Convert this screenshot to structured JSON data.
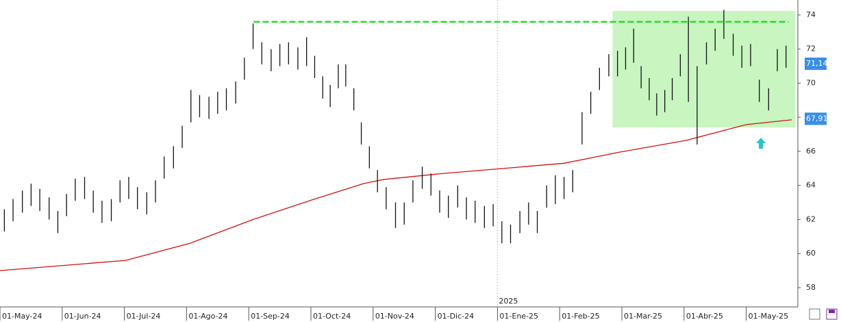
{
  "chart_data": {
    "type": "ohlc",
    "x": [
      0.07,
      0.21,
      0.36,
      0.5,
      0.64,
      0.79,
      0.93,
      1.07,
      1.21,
      1.36,
      1.5,
      1.64,
      1.79,
      1.93,
      2.07,
      2.21,
      2.36,
      2.5,
      2.64,
      2.79,
      2.93,
      3.07,
      3.21,
      3.36,
      3.5,
      3.64,
      3.79,
      3.93,
      4.07,
      4.21,
      4.36,
      4.5,
      4.64,
      4.79,
      4.93,
      5.06,
      5.19,
      5.31,
      5.44,
      5.56,
      5.69,
      5.81,
      5.94,
      6.07,
      6.21,
      6.36,
      6.5,
      6.64,
      6.79,
      6.93,
      7.07,
      7.21,
      7.36,
      7.5,
      7.64,
      7.79,
      7.93,
      8.07,
      8.21,
      8.36,
      8.5,
      8.64,
      8.79,
      8.93,
      9.07,
      9.21,
      9.36,
      9.5,
      9.64,
      9.79,
      9.93,
      10.06,
      10.19,
      10.31,
      10.44,
      10.56,
      10.69,
      10.81,
      10.94,
      11.07,
      11.21,
      11.36,
      11.5,
      11.64,
      11.79,
      11.93,
      12.07,
      12.21,
      12.36,
      12.5,
      12.64
    ],
    "high": [
      62.6,
      63.2,
      63.7,
      64.1,
      63.8,
      63.3,
      62.5,
      63.5,
      64.4,
      64.5,
      63.7,
      63.1,
      63.2,
      64.3,
      64.5,
      63.9,
      63.6,
      64.3,
      65.7,
      66.3,
      67.5,
      69.6,
      69.3,
      69.2,
      69.5,
      69.7,
      70.1,
      71.5,
      73.5,
      72.4,
      72.0,
      72.3,
      72.4,
      72.1,
      72.7,
      71.6,
      70.4,
      69.9,
      71.1,
      71.1,
      69.7,
      67.7,
      66.3,
      64.9,
      63.9,
      63.0,
      63.0,
      64.3,
      65.1,
      64.7,
      63.7,
      63.4,
      64.0,
      63.3,
      63.1,
      62.8,
      62.9,
      61.9,
      61.7,
      62.5,
      63.0,
      62.5,
      64.0,
      64.6,
      64.5,
      64.9,
      68.3,
      69.5,
      70.9,
      71.7,
      71.9,
      72.1,
      73.2,
      71.0,
      70.3,
      69.4,
      69.6,
      70.3,
      71.7,
      73.9,
      71.0,
      72.4,
      73.2,
      74.3,
      72.9,
      72.2,
      72.3,
      70.2,
      69.7,
      72.0,
      72.2
    ],
    "low": [
      61.3,
      61.9,
      62.4,
      62.8,
      62.5,
      62.0,
      61.2,
      62.2,
      63.1,
      63.2,
      62.4,
      61.8,
      61.9,
      63.0,
      63.2,
      62.6,
      62.3,
      63.0,
      64.4,
      65.0,
      66.2,
      67.7,
      68.0,
      67.9,
      68.2,
      68.4,
      68.8,
      70.2,
      72.0,
      71.1,
      70.7,
      71.0,
      71.1,
      70.8,
      71.0,
      70.3,
      69.1,
      68.6,
      69.7,
      69.8,
      68.4,
      66.4,
      65.0,
      63.6,
      62.6,
      61.5,
      61.7,
      63.0,
      63.8,
      63.4,
      62.4,
      62.1,
      62.7,
      62.0,
      61.8,
      61.5,
      61.6,
      60.6,
      60.6,
      61.2,
      61.7,
      61.2,
      62.7,
      62.9,
      63.2,
      63.6,
      66.4,
      68.2,
      69.6,
      70.4,
      70.4,
      70.8,
      71.2,
      69.7,
      69.0,
      68.1,
      68.3,
      69.0,
      70.4,
      68.9,
      66.4,
      71.1,
      71.9,
      72.6,
      71.6,
      70.9,
      71.0,
      68.9,
      68.4,
      70.7,
      70.9
    ],
    "color": "#111111",
    "moving_average": {
      "color": "#cc1111",
      "x": [
        0,
        2.02,
        3.05,
        4.07,
        5.06,
        5.84,
        6.17,
        7.12,
        8.11,
        9.07,
        9.96,
        11.03,
        12.0,
        12.73
      ],
      "values": [
        59.0,
        59.6,
        60.6,
        62.0,
        63.2,
        64.1,
        64.35,
        64.7,
        65.0,
        65.3,
        65.95,
        66.64,
        67.57,
        67.85
      ]
    },
    "resistance": {
      "value": 73.6,
      "x": [
        4.08,
        12.68
      ],
      "color": "#22dd22"
    },
    "range_box": {
      "x": [
        9.85,
        12.79
      ],
      "y": [
        67.4,
        74.24
      ],
      "color": "#c8f5c0"
    },
    "price_tags": [
      {
        "value": 71.14,
        "label": "71,14"
      },
      {
        "value": 67.91,
        "label": "67,91"
      }
    ],
    "annotations": [
      "2025"
    ],
    "xlim": [
      0,
      12.83
    ],
    "ylim": [
      56.87,
      74.88
    ],
    "yticks": [
      58,
      60,
      62,
      64,
      66,
      68,
      70,
      72,
      74
    ],
    "xticks": [
      {
        "value": 0,
        "label": "01-May-24"
      },
      {
        "value": 1,
        "label": "01-Jun-24"
      },
      {
        "value": 2,
        "label": "01-Jul-24"
      },
      {
        "value": 3,
        "label": "01-Ago-24"
      },
      {
        "value": 4,
        "label": "01-Sep-24"
      },
      {
        "value": 5,
        "label": "01-Oct-24"
      },
      {
        "value": 6,
        "label": "01-Nov-24"
      },
      {
        "value": 7,
        "label": "01-Dic-24"
      },
      {
        "value": 8,
        "label": "01-Ene-25"
      },
      {
        "value": 9,
        "label": "01-Feb-25"
      },
      {
        "value": 10,
        "label": "01-Mar-25"
      },
      {
        "value": 11,
        "label": "01-Abr-25"
      },
      {
        "value": 12,
        "label": "01-May-25"
      }
    ]
  }
}
